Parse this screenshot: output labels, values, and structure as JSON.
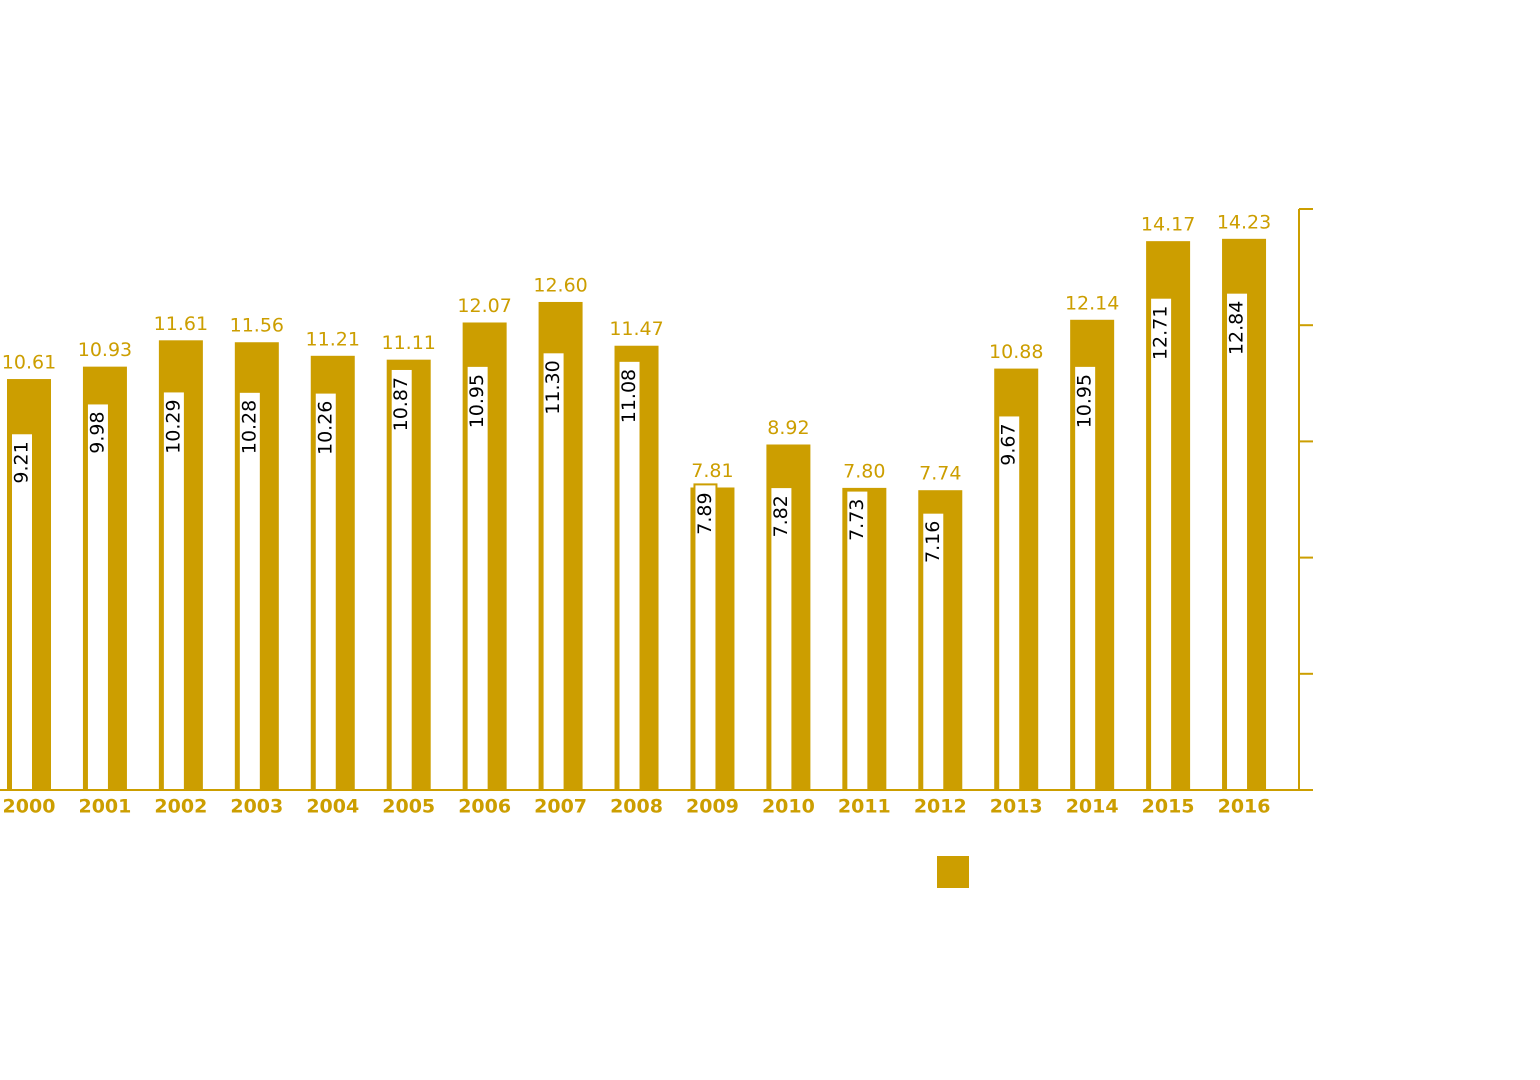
{
  "chart_data": {
    "type": "bar",
    "categories": [
      "2000",
      "2001",
      "2002",
      "2003",
      "2004",
      "2005",
      "2006",
      "2007",
      "2008",
      "2009",
      "2010",
      "2011",
      "2012",
      "2013",
      "2014",
      "2015",
      "2016"
    ],
    "series": [
      {
        "color": "#cc9e00",
        "values": [
          10.61,
          10.93,
          11.61,
          11.56,
          11.21,
          11.11,
          12.07,
          12.6,
          11.47,
          7.81,
          8.92,
          7.8,
          7.74,
          10.88,
          12.14,
          14.17,
          14.23
        ],
        "value_labels": [
          "10.61",
          "10.93",
          "11.61",
          "11.56",
          "11.21",
          "11.11",
          "12.07",
          "12.60",
          "11.47",
          "7.81",
          "8.92",
          "7.80",
          "7.74",
          "10.88",
          "12.14",
          "14.17",
          "14.23"
        ]
      },
      {
        "color": "#ffffff",
        "values": [
          9.21,
          9.98,
          10.29,
          10.28,
          10.26,
          10.87,
          10.95,
          11.3,
          11.08,
          7.89,
          7.82,
          7.73,
          7.16,
          9.67,
          10.95,
          12.71,
          12.84
        ],
        "value_labels": [
          "9.21",
          "9.98",
          "10.29",
          "10.28",
          "10.26",
          "10.87",
          "10.95",
          "11.30",
          "11.08",
          "7.89",
          "7.82",
          "7.73",
          "7.16",
          "9.67",
          "10.95",
          "12.71",
          "12.84"
        ]
      }
    ],
    "ylim": [
      0,
      15
    ],
    "yticks": [
      0,
      3,
      6,
      9,
      12,
      15
    ],
    "axis_color": "#cc9e00"
  }
}
